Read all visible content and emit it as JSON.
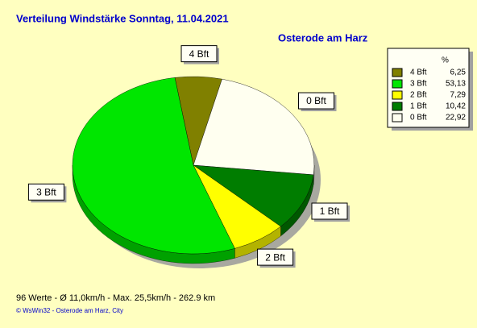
{
  "chart_data": {
    "type": "pie",
    "title": "Verteilung Windstärke  Sonntag, 11.04.2021",
    "subtitle": "Osterode am Harz",
    "legend_header": "%",
    "categories": [
      "4 Bft",
      "3 Bft",
      "2 Bft",
      "1 Bft",
      "0 Bft"
    ],
    "values": [
      6.25,
      53.13,
      7.29,
      10.42,
      22.92
    ],
    "value_labels": [
      "6,25",
      "53,13",
      "7,29",
      "10,42",
      "22,92"
    ],
    "colors": [
      "#808000",
      "#00e600",
      "#ffff00",
      "#007d00",
      "#fffff0"
    ],
    "legend": "top-right",
    "footer": "96 Werte   -   Ø 11,0km/h  -  Max. 25,5km/h  -   262.9 km",
    "credit": "© WsWin32  -  Osterode am Harz, City"
  }
}
